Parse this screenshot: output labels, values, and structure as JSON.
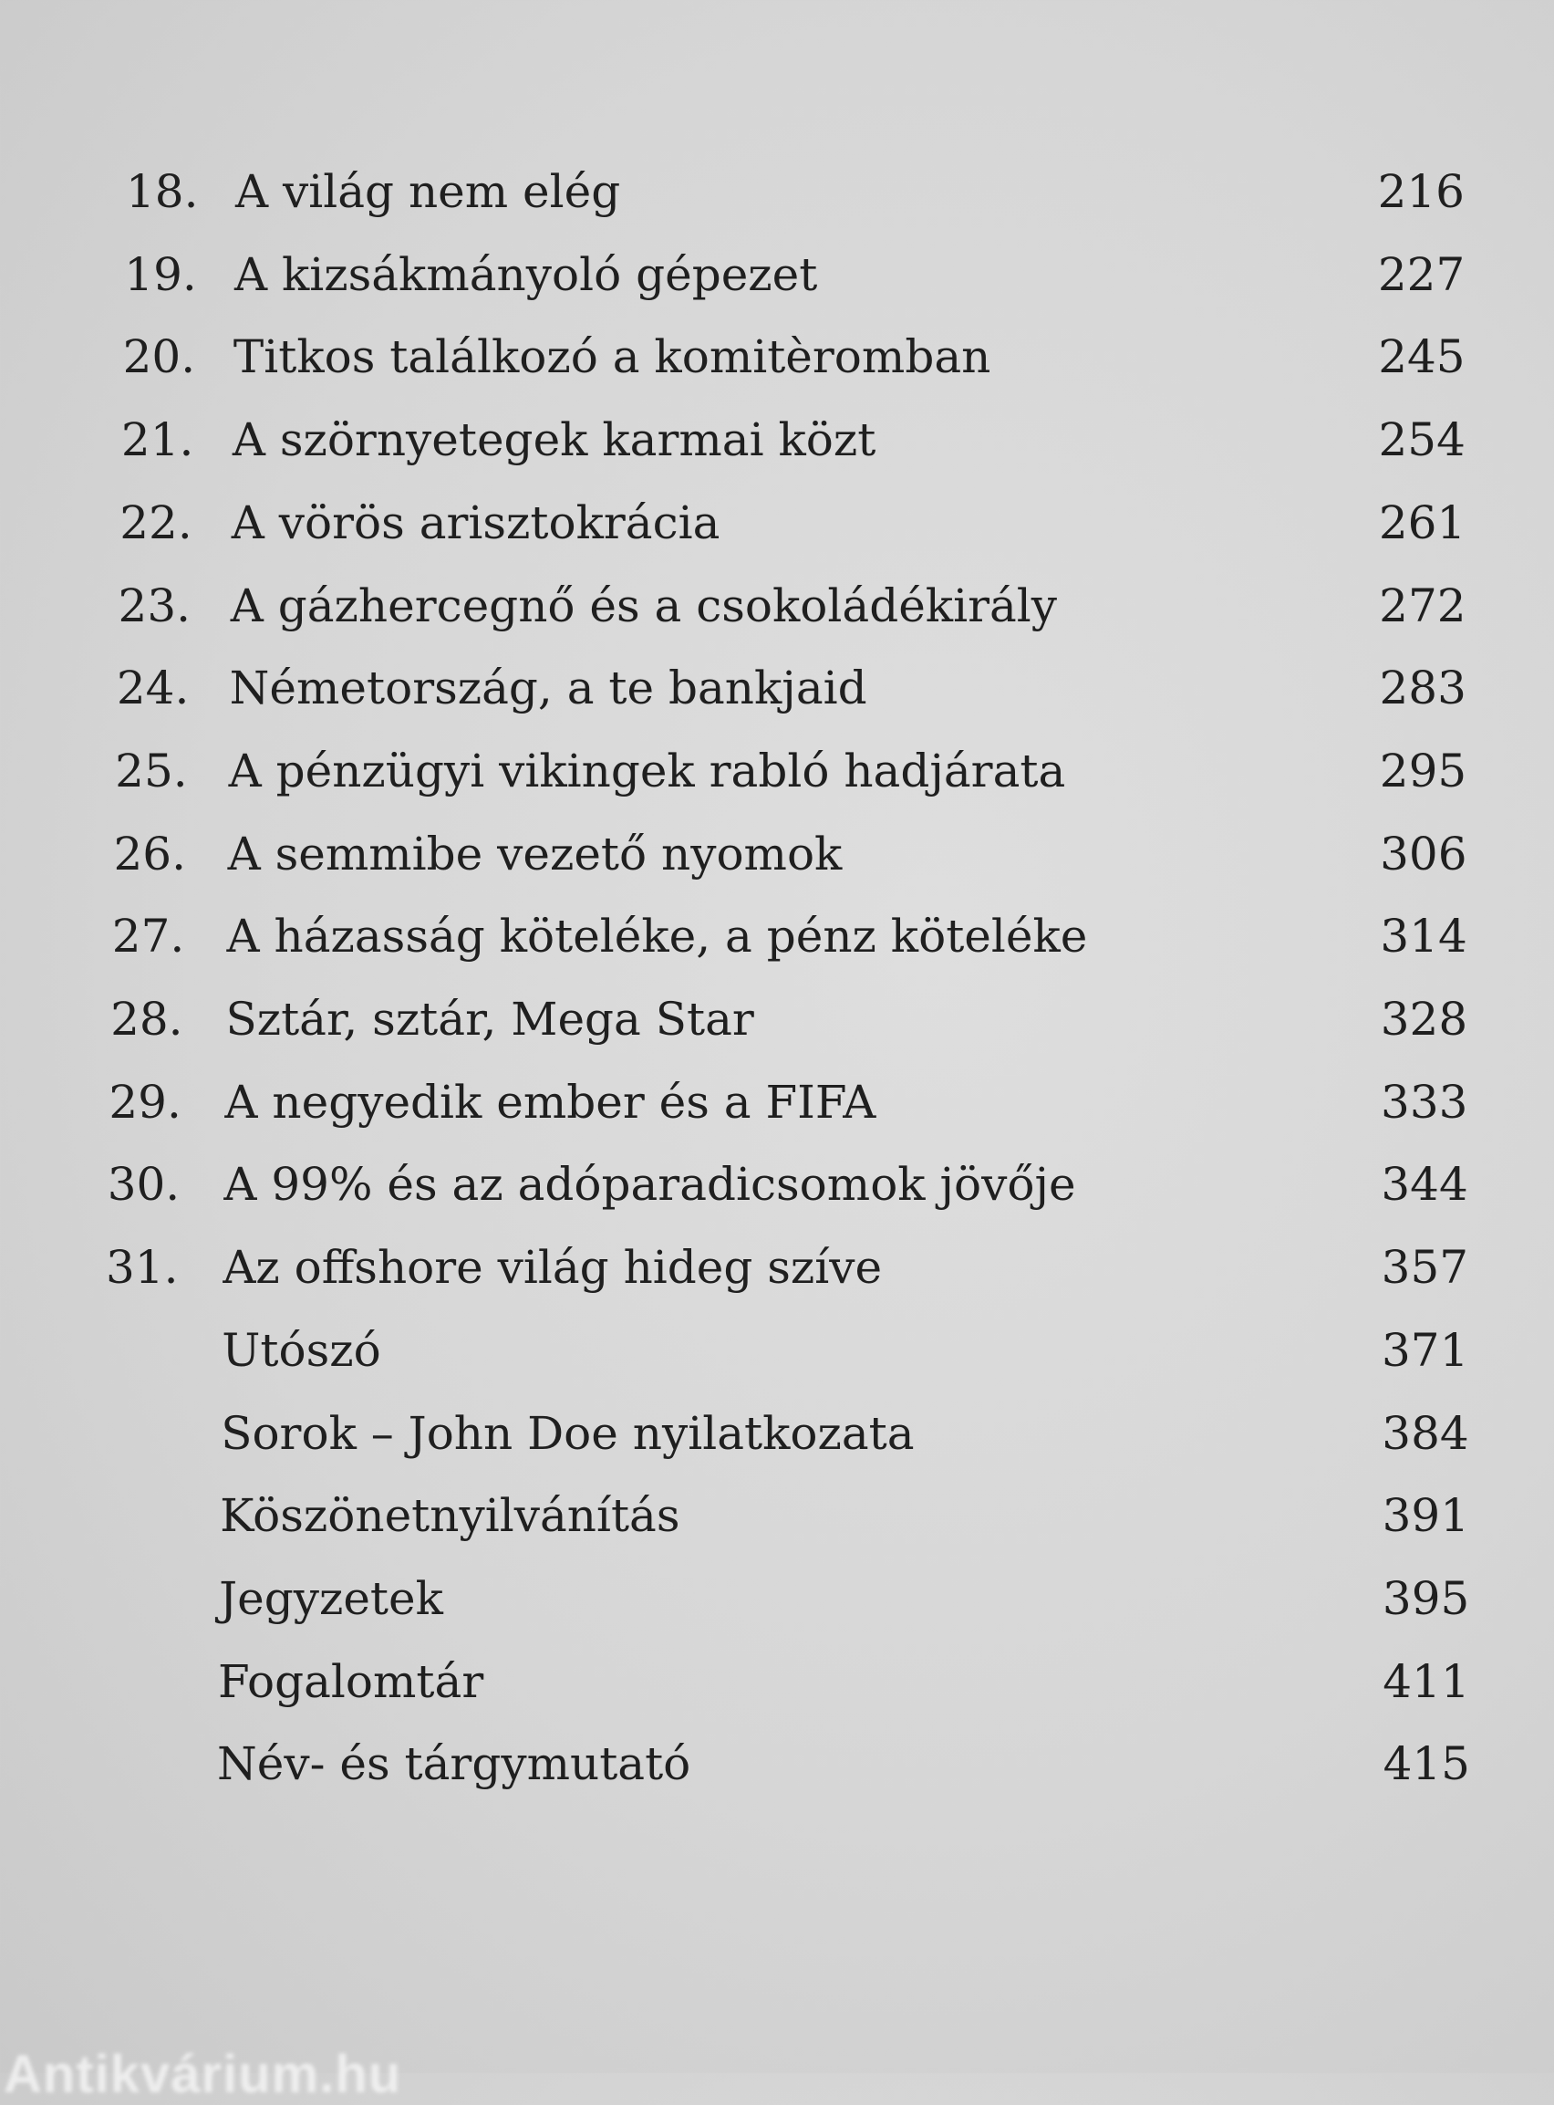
{
  "toc": [
    {
      "number": "18.",
      "title": "A világ nem elég",
      "page": "216"
    },
    {
      "number": "19.",
      "title": "A kizsákmányoló gépezet",
      "page": "227"
    },
    {
      "number": "20.",
      "title": "Titkos találkozó a komitèromban",
      "page": "245"
    },
    {
      "number": "21.",
      "title": "A szörnyetegek karmai közt",
      "page": "254"
    },
    {
      "number": "22.",
      "title": "A vörös arisztokrácia",
      "page": "261"
    },
    {
      "number": "23.",
      "title": "A gázhercegnő és a csokoládékirály",
      "page": "272"
    },
    {
      "number": "24.",
      "title": "Németország, a te bankjaid",
      "page": "283"
    },
    {
      "number": "25.",
      "title": "A pénzügyi vikingek rabló hadjárata",
      "page": "295"
    },
    {
      "number": "26.",
      "title": "A semmibe vezető nyomok",
      "page": "306"
    },
    {
      "number": "27.",
      "title": "A házasság köteléke, a pénz köteléke",
      "page": "314"
    },
    {
      "number": "28.",
      "title": "Sztár, sztár, Mega Star",
      "page": "328"
    },
    {
      "number": "29.",
      "title": "A negyedik ember és a FIFA",
      "page": "333"
    },
    {
      "number": "30.",
      "title": "A 99% és az adóparadicsomok jövője",
      "page": "344"
    },
    {
      "number": "31.",
      "title": "Az offshore világ hideg szíve",
      "page": "357"
    },
    {
      "number": "",
      "title": "Utószó",
      "page": "371"
    },
    {
      "number": "",
      "title": "Sorok – John Doe nyilatkozata",
      "page": "384"
    },
    {
      "number": "",
      "title": "Köszönetnyilvánítás",
      "page": "391"
    },
    {
      "number": "",
      "title": "Jegyzetek",
      "page": "395"
    },
    {
      "number": "",
      "title": "Fogalomtár",
      "page": "411"
    },
    {
      "number": "",
      "title": "Név- és tárgymutató",
      "page": "415"
    }
  ],
  "watermark": "Antikvárium.hu"
}
